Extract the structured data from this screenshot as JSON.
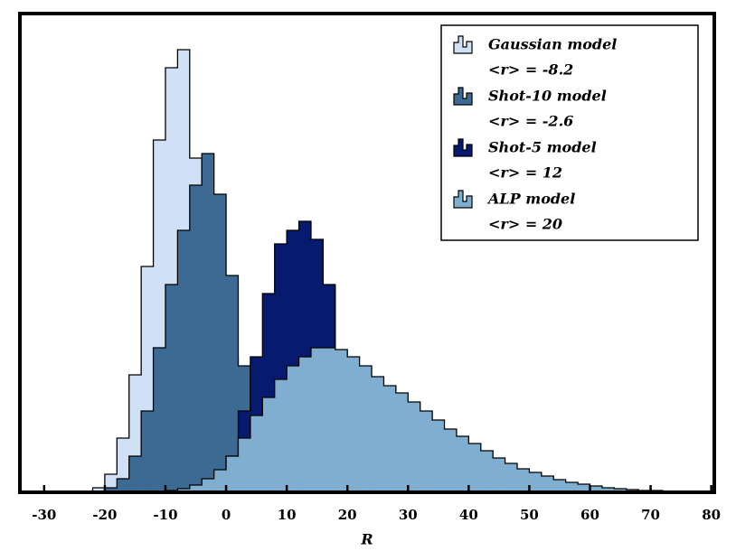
{
  "chart_data": {
    "type": "histogram",
    "x_label": "R",
    "xlim": [
      -34,
      80.5
    ],
    "ylim": [
      0,
      530
    ],
    "xticks": [
      -30,
      -20,
      -10,
      0,
      10,
      20,
      30,
      40,
      50,
      60,
      70,
      80
    ],
    "legend_position": "upper right",
    "series": [
      {
        "name": "Gaussian model",
        "mean_label": "<r> = -8.2",
        "color": "#cfe0f7",
        "bins": [
          -22,
          -20,
          -18,
          -16,
          -14,
          -12,
          -10,
          -8,
          -6,
          -4,
          -2,
          0,
          2,
          4
        ],
        "values": [
          5,
          20,
          60,
          130,
          250,
          390,
          470,
          490,
          370,
          300,
          240,
          150,
          60
        ]
      },
      {
        "name": "Shot-10 model",
        "mean_label": "<r> = -2.6",
        "color": "#3c6a92",
        "bins": [
          -20,
          -18,
          -16,
          -14,
          -12,
          -10,
          -8,
          -6,
          -4,
          -2,
          0,
          2,
          4,
          6,
          8
        ],
        "values": [
          5,
          15,
          40,
          90,
          160,
          230,
          290,
          340,
          375,
          330,
          240,
          140,
          50,
          12
        ]
      },
      {
        "name": "Shot-5 model",
        "mean_label": "<r> = 12",
        "color": "#061a6e",
        "bins": [
          -2,
          0,
          2,
          4,
          6,
          8,
          10,
          12,
          14,
          16,
          18,
          20,
          22,
          24
        ],
        "values": [
          10,
          40,
          90,
          150,
          220,
          275,
          290,
          300,
          280,
          230,
          150,
          70,
          20
        ]
      },
      {
        "name": "ALP model",
        "mean_label": "<r> = 20",
        "color": "#80aed0",
        "bins": [
          -10,
          -8,
          -6,
          -4,
          -2,
          0,
          2,
          4,
          6,
          8,
          10,
          12,
          14,
          16,
          18,
          20,
          22,
          24,
          26,
          28,
          30,
          32,
          34,
          36,
          38,
          40,
          42,
          44,
          46,
          48,
          50,
          52,
          54,
          56,
          58,
          60,
          62,
          64,
          66,
          68,
          70,
          72,
          74,
          76
        ],
        "values": [
          2,
          4,
          8,
          15,
          25,
          40,
          60,
          85,
          105,
          125,
          140,
          150,
          160,
          160,
          158,
          150,
          140,
          128,
          118,
          110,
          100,
          90,
          80,
          70,
          62,
          54,
          46,
          38,
          32,
          26,
          22,
          18,
          14,
          11,
          9,
          7,
          5,
          4,
          3,
          2,
          2,
          1,
          1
        ]
      }
    ]
  }
}
